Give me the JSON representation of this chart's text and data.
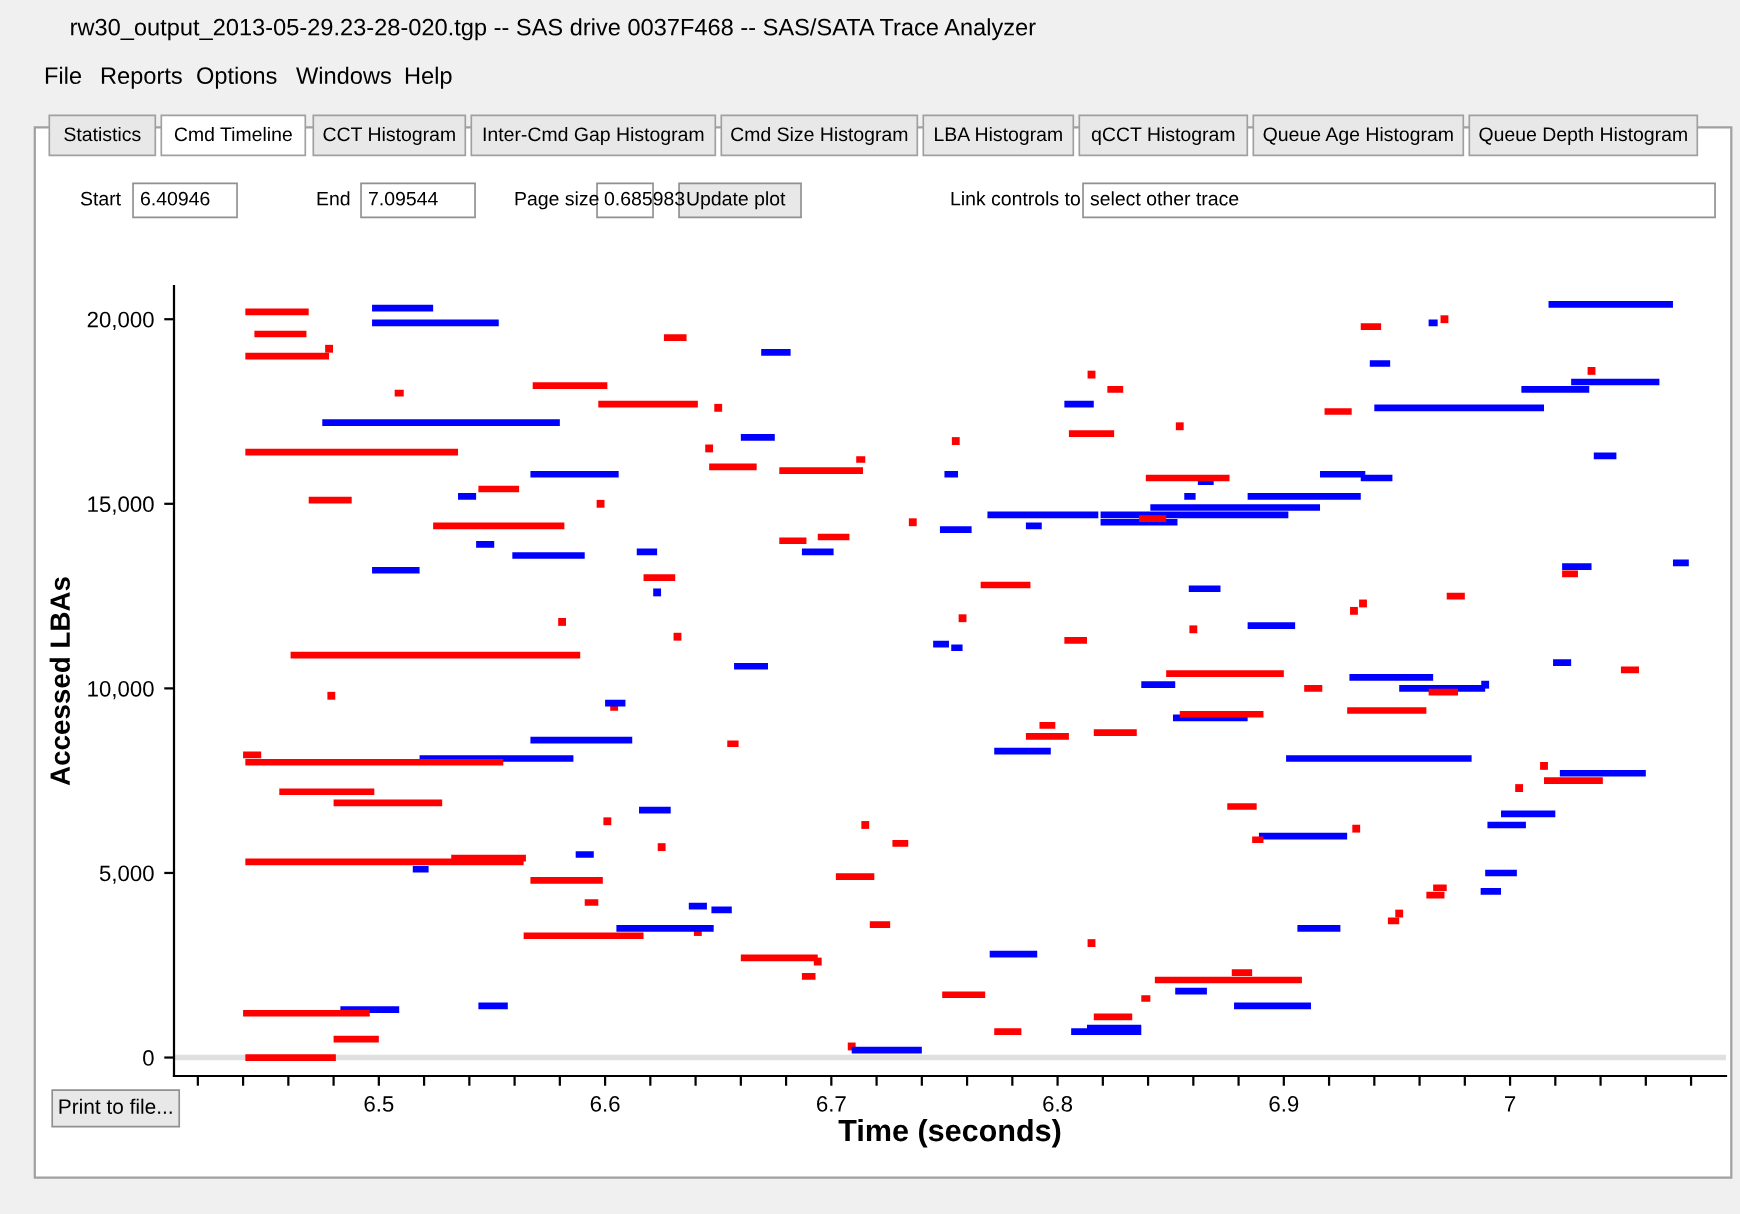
{
  "chart_data": {
    "type": "line",
    "title": "rw30_output_2013-05-29.23-28-020.tgp -- SAS drive 0037F468 -- SAS/SATA Trace Analyzer",
    "xlabel": "Time (seconds)",
    "ylabel": "Accessed LBAs",
    "annotations": [
      "File",
      "Reports",
      "Options",
      "Windows",
      "Help",
      "Statistics",
      "Cmd Timeline",
      "CCT Histogram",
      "Inter-Cmd Gap Histogram",
      "Cmd Size Histogram",
      "LBA Histogram",
      "qCCT Histogram",
      "Queue Age Histogram",
      "Queue Depth Histogram",
      "Start",
      "6.40946",
      "End",
      "7.09544",
      "Page size",
      "0.685983",
      "Update plot",
      "Link controls to",
      "select other trace",
      "Print to file..."
    ],
    "xlim": [
      6.40946,
      7.09544
    ],
    "ylim": [
      -500,
      20900
    ],
    "xticks": [
      {
        "value": 6.42,
        "label": null
      },
      {
        "value": 6.44,
        "label": null
      },
      {
        "value": 6.46,
        "label": null
      },
      {
        "value": 6.48,
        "label": null
      },
      6.5,
      {
        "value": 6.52,
        "label": null
      },
      {
        "value": 6.54,
        "label": null
      },
      {
        "value": 6.56,
        "label": null
      },
      {
        "value": 6.58,
        "label": null
      },
      6.6,
      {
        "value": 6.62,
        "label": null
      },
      {
        "value": 6.64,
        "label": null
      },
      {
        "value": 6.66,
        "label": null
      },
      {
        "value": 6.68,
        "label": null
      },
      6.7,
      {
        "value": 6.72,
        "label": null
      },
      {
        "value": 6.74,
        "label": null
      },
      {
        "value": 6.76,
        "label": null
      },
      {
        "value": 6.78,
        "label": null
      },
      6.8,
      {
        "value": 6.82,
        "label": null
      },
      {
        "value": 6.84,
        "label": null
      },
      {
        "value": 6.86,
        "label": null
      },
      {
        "value": 6.88,
        "label": null
      },
      6.9,
      {
        "value": 6.92,
        "label": null
      },
      {
        "value": 6.94,
        "label": null
      },
      {
        "value": 6.96,
        "label": null
      },
      {
        "value": 6.98,
        "label": null
      },
      7,
      {
        "value": 7.02,
        "label": null
      },
      {
        "value": 7.04,
        "label": null
      },
      {
        "value": 7.06,
        "label": null
      },
      {
        "value": 7.08,
        "label": null
      }
    ],
    "yticks": [
      0,
      {
        "value": 5000,
        "label": "5,000"
      },
      {
        "value": 10000,
        "label": "10,000"
      },
      {
        "value": 15000,
        "label": "15,000"
      },
      {
        "value": 20000,
        "label": "20,000"
      }
    ],
    "ref_lines": [
      {
        "axis": "y",
        "value": 0,
        "color": "#e0e0e0"
      }
    ],
    "grid": false,
    "marker": "none",
    "line_style": "solid",
    "series": [
      {
        "color": "#0000ff",
        "x": [
          6.497,
          6.524,
          null,
          6.497,
          6.553,
          null,
          6.475,
          6.58,
          null,
          6.567,
          6.606,
          null,
          6.535,
          6.543,
          null,
          6.543,
          6.551,
          null,
          6.559,
          6.591,
          null,
          6.614,
          6.623,
          null,
          6.497,
          6.518,
          null,
          6.669,
          6.682,
          null,
          6.803,
          6.816,
          null,
          6.66,
          6.675,
          null,
          6.75,
          6.756,
          null,
          6.862,
          6.869,
          null,
          6.856,
          6.861,
          null,
          6.769,
          6.818,
          null,
          6.819,
          6.902,
          null,
          6.841,
          6.916,
          null,
          6.819,
          6.853,
          null,
          6.786,
          6.793,
          null,
          6.748,
          6.762,
          null,
          6.687,
          6.701,
          null,
          6.858,
          6.872,
          null,
          6.745,
          6.752,
          null,
          6.753,
          6.758,
          null,
          6.657,
          6.672,
          null,
          7.017,
          7.072,
          null,
          6.964,
          6.968,
          null,
          6.938,
          6.947,
          null,
          7.027,
          7.066,
          null,
          7.005,
          7.035,
          null,
          6.94,
          7.015,
          null,
          7.037,
          7.047,
          null,
          6.916,
          6.936,
          null,
          6.934,
          6.948,
          null,
          6.884,
          6.934,
          null,
          7.023,
          7.036,
          null,
          7.072,
          7.079,
          null,
          6.884,
          6.905,
          null,
          6.929,
          6.966,
          null,
          7.019,
          7.027,
          null,
          6.6,
          6.609,
          null,
          6.518,
          6.586,
          null,
          6.567,
          6.612,
          null,
          6.615,
          6.629,
          null,
          6.515,
          6.522,
          null,
          6.587,
          6.595,
          null,
          6.637,
          6.645,
          null,
          6.647,
          6.656,
          null,
          6.605,
          6.648,
          null,
          6.544,
          6.557,
          null,
          6.483,
          6.509,
          null,
          6.837,
          6.852,
          null,
          6.772,
          6.797,
          null,
          6.851,
          6.884,
          null,
          6.77,
          6.791,
          null,
          6.852,
          6.866,
          null,
          6.813,
          6.837,
          null,
          6.806,
          6.837,
          null,
          6.709,
          6.74,
          null,
          6.878,
          6.912,
          null,
          6.951,
          6.989,
          null,
          6.901,
          6.983,
          null,
          7.022,
          7.06,
          null,
          6.889,
          6.928,
          null,
          6.996,
          7.02,
          null,
          6.99,
          7.007,
          null,
          6.989,
          7.003,
          null,
          6.987,
          6.996,
          null,
          6.906,
          6.925
        ],
        "values": [
          20300,
          20300,
          null,
          19900,
          19900,
          null,
          17200,
          17200,
          null,
          15800,
          15800,
          null,
          15200,
          15200,
          null,
          13900,
          13900,
          null,
          13600,
          13600,
          null,
          13700,
          13700,
          null,
          13200,
          13200,
          null,
          19100,
          19100,
          null,
          17700,
          17700,
          null,
          16800,
          16800,
          null,
          15800,
          15800,
          null,
          15600,
          15600,
          null,
          15200,
          15200,
          null,
          14700,
          14700,
          null,
          14700,
          14700,
          null,
          14900,
          14900,
          null,
          14500,
          14500,
          null,
          14400,
          14400,
          null,
          14300,
          14300,
          null,
          13700,
          13700,
          null,
          12700,
          12700,
          null,
          11200,
          11200,
          null,
          11100,
          11100,
          null,
          10600,
          10600,
          null,
          20400,
          20400,
          null,
          19900,
          19900,
          null,
          18800,
          18800,
          null,
          18300,
          18300,
          null,
          18100,
          18100,
          null,
          17600,
          17600,
          null,
          16300,
          16300,
          null,
          15800,
          15800,
          null,
          15700,
          15700,
          null,
          15200,
          15200,
          null,
          13300,
          13300,
          null,
          13400,
          13400,
          null,
          11700,
          11700,
          null,
          10300,
          10300,
          null,
          10700,
          10700,
          null,
          9600,
          9600,
          null,
          8100,
          8100,
          null,
          8600,
          8600,
          null,
          6700,
          6700,
          null,
          5100,
          5100,
          null,
          5500,
          5500,
          null,
          4100,
          4100,
          null,
          4000,
          4000,
          null,
          3500,
          3500,
          null,
          1400,
          1400,
          null,
          1300,
          1300,
          null,
          10100,
          10100,
          null,
          8300,
          8300,
          null,
          9200,
          9200,
          null,
          2800,
          2800,
          null,
          1800,
          1800,
          null,
          800,
          800,
          null,
          700,
          700,
          null,
          200,
          200,
          null,
          1400,
          1400,
          null,
          10000,
          10000,
          null,
          8100,
          8100,
          null,
          7700,
          7700,
          null,
          6000,
          6000,
          null,
          6600,
          6600,
          null,
          6300,
          6300,
          null,
          5000,
          5000,
          null,
          4500,
          4500,
          null,
          3500,
          3500
        ]
      },
      {
        "color": "#ff0000",
        "x": [
          6.441,
          6.469,
          null,
          6.445,
          6.468,
          null,
          6.441,
          6.478,
          null,
          6.626,
          6.636,
          null,
          6.568,
          6.601,
          null,
          6.507,
          6.511,
          null,
          6.597,
          6.641,
          null,
          6.441,
          6.535,
          null,
          6.646,
          6.667,
          null,
          6.544,
          6.562,
          null,
          6.469,
          6.488,
          null,
          6.524,
          6.582,
          null,
          6.617,
          6.631,
          null,
          6.461,
          6.589,
          null,
          6.822,
          6.829,
          null,
          6.805,
          6.825,
          null,
          6.677,
          6.714,
          null,
          6.711,
          6.715,
          null,
          6.839,
          6.876,
          null,
          6.836,
          6.848,
          null,
          6.677,
          6.689,
          null,
          6.694,
          6.708,
          null,
          6.766,
          6.788,
          null,
          6.803,
          6.813,
          null,
          6.848,
          6.9,
          null,
          6.934,
          6.943,
          null,
          6.918,
          6.93,
          null,
          7.023,
          7.03,
          null,
          6.972,
          6.98,
          null,
          6.44,
          6.448,
          null,
          6.441,
          6.555,
          null,
          6.654,
          6.659,
          null,
          6.456,
          6.498,
          null,
          6.48,
          6.528,
          null,
          6.441,
          6.564,
          null,
          6.532,
          6.565,
          null,
          6.567,
          6.599,
          null,
          6.591,
          6.597,
          null,
          6.564,
          6.617,
          null,
          6.44,
          6.496,
          null,
          6.48,
          6.5,
          null,
          6.441,
          6.481,
          null,
          6.792,
          6.799,
          null,
          6.786,
          6.805,
          null,
          6.816,
          6.835,
          null,
          6.854,
          6.891,
          null,
          6.875,
          6.888,
          null,
          6.727,
          6.734,
          null,
          6.702,
          6.719,
          null,
          6.717,
          6.726,
          null,
          6.66,
          6.694,
          null,
          6.687,
          6.693,
          null,
          6.843,
          6.908,
          null,
          6.837,
          6.841,
          null,
          6.749,
          6.768,
          null,
          6.816,
          6.833,
          null,
          6.772,
          6.784,
          null,
          6.877,
          6.886,
          null,
          7.049,
          7.057,
          null,
          6.909,
          6.917,
          null,
          6.964,
          6.977,
          null,
          6.928,
          6.963,
          null,
          7.015,
          7.041,
          null,
          6.886,
          6.891,
          null,
          6.966,
          6.972,
          null,
          6.963,
          6.971,
          null,
          6.946,
          6.951
        ],
        "values": [
          20200,
          20200,
          null,
          19600,
          19600,
          null,
          19000,
          19000,
          null,
          19500,
          19500,
          null,
          18200,
          18200,
          null,
          18000,
          18000,
          null,
          17700,
          17700,
          null,
          16400,
          16400,
          null,
          16000,
          16000,
          null,
          15400,
          15400,
          null,
          15100,
          15100,
          null,
          14400,
          14400,
          null,
          13000,
          13000,
          null,
          10900,
          10900,
          null,
          18100,
          18100,
          null,
          16900,
          16900,
          null,
          15900,
          15900,
          null,
          16200,
          16200,
          null,
          15700,
          15700,
          null,
          14600,
          14600,
          null,
          14000,
          14000,
          null,
          14100,
          14100,
          null,
          12800,
          12800,
          null,
          11300,
          11300,
          null,
          10400,
          10400,
          null,
          19800,
          19800,
          null,
          17500,
          17500,
          null,
          13100,
          13100,
          null,
          12500,
          12500,
          null,
          8200,
          8200,
          null,
          8000,
          8000,
          null,
          8500,
          8500,
          null,
          7200,
          7200,
          null,
          6900,
          6900,
          null,
          5300,
          5300,
          null,
          5400,
          5400,
          null,
          4800,
          4800,
          null,
          4200,
          4200,
          null,
          3300,
          3300,
          null,
          1200,
          1200,
          null,
          500,
          500,
          null,
          0,
          0,
          null,
          9000,
          9000,
          null,
          8700,
          8700,
          null,
          8800,
          8800,
          null,
          9300,
          9300,
          null,
          6800,
          6800,
          null,
          5800,
          5800,
          null,
          4900,
          4900,
          null,
          3600,
          3600,
          null,
          2700,
          2700,
          null,
          2200,
          2200,
          null,
          2100,
          2100,
          null,
          1600,
          1600,
          null,
          1700,
          1700,
          null,
          1100,
          1100,
          null,
          700,
          700,
          null,
          2300,
          2300,
          null,
          10500,
          10500,
          null,
          10000,
          10000,
          null,
          9900,
          9900,
          null,
          9400,
          9400,
          null,
          7500,
          7500,
          null,
          5900,
          5900,
          null,
          4600,
          4600,
          null,
          4400,
          4400,
          null,
          3700,
          3700
        ]
      },
      {
        "type": "scatter",
        "marker": "square",
        "color": "#0000ff",
        "x": [
          6.623,
          6.989
        ],
        "values": [
          12600,
          10100
        ]
      },
      {
        "type": "scatter",
        "marker": "square",
        "color": "#ff0000",
        "x": [
          6.478,
          6.65,
          6.646,
          6.598,
          6.581,
          6.632,
          6.815,
          6.854,
          6.755,
          6.736,
          6.758,
          6.86,
          6.971,
          7.036,
          6.935,
          6.931,
          6.479,
          6.604,
          6.601,
          6.625,
          6.641,
          6.715,
          6.694,
          6.815,
          6.709,
          7.015,
          7.004,
          6.932,
          6.951
        ],
        "values": [
          19200,
          17600,
          16500,
          15000,
          11800,
          11400,
          18500,
          17100,
          16700,
          14500,
          11900,
          11600,
          20000,
          18600,
          12300,
          12100,
          9800,
          9500,
          6400,
          5700,
          3400,
          6300,
          2600,
          3100,
          300,
          7900,
          7300,
          6200,
          3900
        ]
      }
    ]
  }
}
